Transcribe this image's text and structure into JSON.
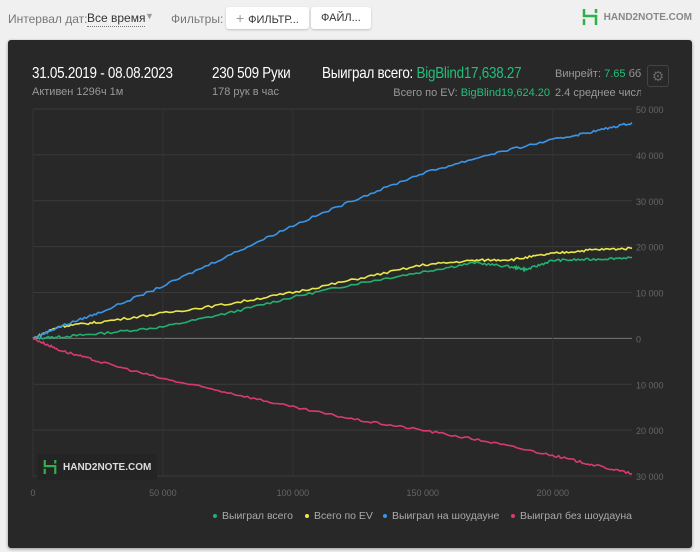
{
  "toolbar": {
    "date_interval_label": "Интервал дат:",
    "date_interval_value": "Все время",
    "filters_label": "Фильтры:",
    "filter_button": "ФИЛЬТР...",
    "file_button": "ФАЙЛ...",
    "logo_text": "HAND2NOTE.COM"
  },
  "stats": {
    "date_range": "31.05.2019 - 08.08.2023",
    "active": "Активен 1296ч 1м",
    "hands": "230 509 Руки",
    "hands_per_hour": "178 рук в час",
    "won_total_label": "Выиграл всего:",
    "won_total_value": "BigBlind17,638.27",
    "ev_label": "Всего по EV:",
    "ev_value": "BigBlind19,624.20",
    "winrate_label": "Винрейт:",
    "winrate_value": "7.65",
    "winrate_unit": "бб/",
    "avg_text": "2.4 среднее числ"
  },
  "watermark": "HAND2NOTE.COM",
  "colors": {
    "won_total": "#21b070",
    "ev": "#e8e84a",
    "showdown": "#3a96e8",
    "non_showdown": "#d83a6e",
    "accent": "#21c07a"
  },
  "chart_data": {
    "type": "line",
    "xlim": [
      0,
      230509
    ],
    "ylim": [
      -30000,
      50000
    ],
    "x_ticks": [
      0,
      50000,
      100000,
      150000,
      200000
    ],
    "x_tick_labels": [
      "0",
      "50 000",
      "100 000",
      "150 000",
      "200 000"
    ],
    "y_ticks": [
      50000,
      40000,
      30000,
      20000,
      10000,
      0,
      -10000,
      -20000,
      -30000
    ],
    "y_tick_labels": [
      "50 000",
      "40 000",
      "30 000",
      "20 000",
      "10 000",
      "0",
      "10 000",
      "20 000",
      "30 000"
    ],
    "grid": true,
    "legend": "bottom",
    "series": [
      {
        "name": "Выиграл всего",
        "color": "#21b070",
        "x": [
          0,
          10000,
          25000,
          50000,
          75000,
          100000,
          125000,
          150000,
          170000,
          185000,
          190000,
          200000,
          215000,
          230509
        ],
        "y": [
          0,
          300,
          1000,
          2500,
          5500,
          9000,
          12000,
          14500,
          16500,
          15500,
          15000,
          17000,
          17200,
          17638
        ]
      },
      {
        "name": "Всего по EV",
        "color": "#e8e84a",
        "x": [
          0,
          10000,
          25000,
          50000,
          75000,
          100000,
          125000,
          150000,
          170000,
          185000,
          200000,
          215000,
          230509
        ],
        "y": [
          0,
          2600,
          3500,
          5500,
          7500,
          10000,
          13000,
          16000,
          17000,
          17200,
          18500,
          19300,
          19624
        ]
      },
      {
        "name": "Выиграл на шоудауне",
        "color": "#3a96e8",
        "x": [
          0,
          10000,
          25000,
          50000,
          75000,
          100000,
          125000,
          150000,
          175000,
          200000,
          215000,
          230509
        ],
        "y": [
          0,
          2500,
          5500,
          11400,
          18000,
          24600,
          30500,
          36000,
          40000,
          43300,
          45000,
          47000
        ]
      },
      {
        "name": "Выиграл без шоудауна",
        "color": "#d83a6e",
        "x": [
          0,
          10000,
          25000,
          50000,
          75000,
          100000,
          125000,
          150000,
          175000,
          200000,
          215000,
          230509
        ],
        "y": [
          0,
          -2500,
          -5000,
          -8800,
          -11800,
          -15000,
          -17800,
          -20000,
          -22500,
          -25500,
          -27500,
          -29500
        ]
      }
    ]
  }
}
